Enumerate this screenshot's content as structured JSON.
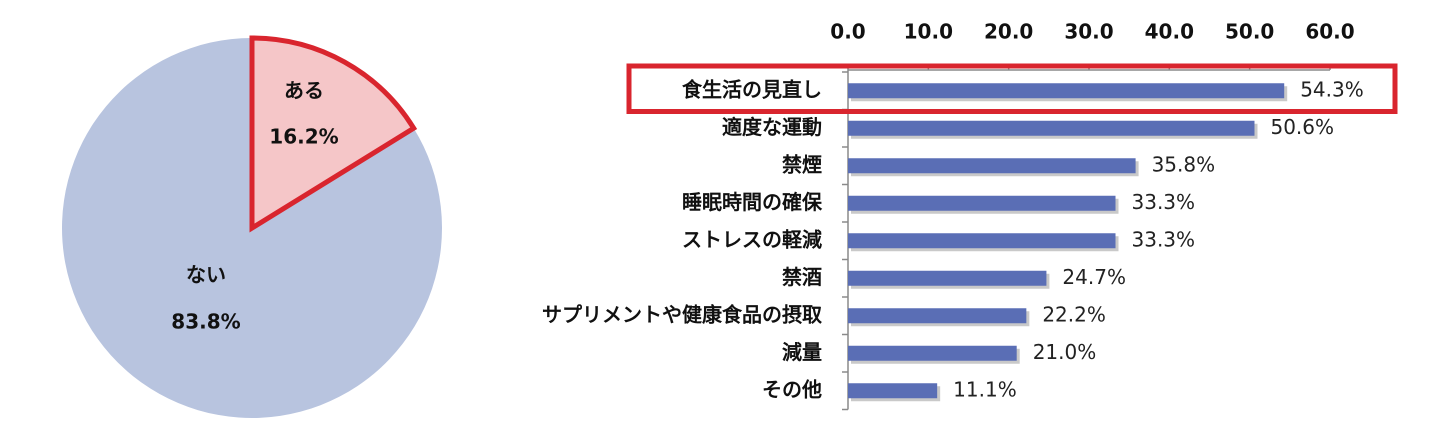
{
  "chart_data": [
    {
      "type": "pie",
      "slices": [
        {
          "label": "ある",
          "value": 16.2,
          "value_label": "16.2%",
          "color": "#f5c6c8",
          "highlight_color": "#d9252e"
        },
        {
          "label": "ない",
          "value": 83.8,
          "value_label": "83.8%",
          "color": "#b8c4df"
        }
      ]
    },
    {
      "type": "bar",
      "orientation": "horizontal",
      "categories": [
        "食生活の見直し",
        "適度な運動",
        "禁煙",
        "睡眠時間の確保",
        "ストレスの軽減",
        "禁酒",
        "サプリメントや健康食品の摂取",
        "減量",
        "その他"
      ],
      "values": [
        54.3,
        50.6,
        35.8,
        33.3,
        33.3,
        24.7,
        22.2,
        21.0,
        11.1
      ],
      "value_labels": [
        "54.3%",
        "50.6%",
        "35.8%",
        "33.3%",
        "33.3%",
        "24.7%",
        "22.2%",
        "21.0%",
        "11.1%"
      ],
      "xlim": [
        0,
        60
      ],
      "ticks": [
        "0.0",
        "10.0",
        "20.0",
        "30.0",
        "40.0",
        "50.0",
        "60.0"
      ],
      "axis_position": "top",
      "bar_color": "#5a6eb5",
      "highlighted_category": "食生活の見直し",
      "highlight_color": "#d9252e"
    }
  ]
}
